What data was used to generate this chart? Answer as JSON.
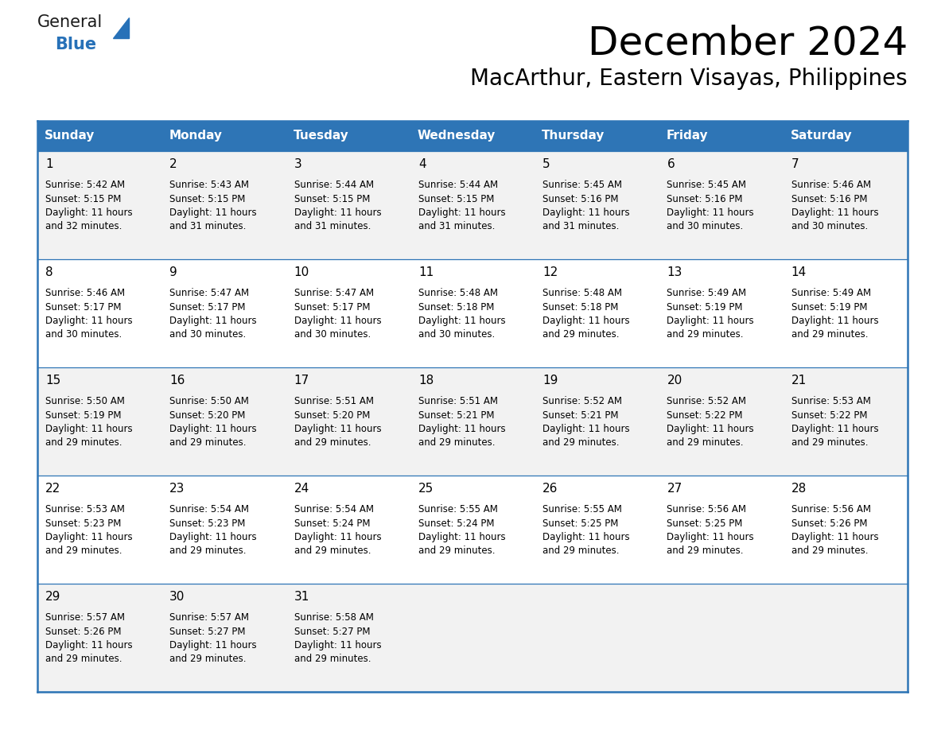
{
  "title": "December 2024",
  "subtitle": "MacArthur, Eastern Visayas, Philippines",
  "header_color": "#2E75B6",
  "header_text_color": "#FFFFFF",
  "day_names": [
    "Sunday",
    "Monday",
    "Tuesday",
    "Wednesday",
    "Thursday",
    "Friday",
    "Saturday"
  ],
  "row_bg_even": "#F2F2F2",
  "row_bg_odd": "#FFFFFF",
  "border_color": "#2E75B6",
  "text_color": "#000000",
  "date_fontsize": 11,
  "info_fontsize": 8.5,
  "header_fontsize": 11,
  "title_fontsize": 36,
  "subtitle_fontsize": 20,
  "logo_general_color": "#1a1a1a",
  "logo_blue_color": "#2771B8",
  "calendar": [
    [
      {
        "day": 1,
        "sunrise": "5:42 AM",
        "sunset": "5:15 PM",
        "daylight_h": "11 hours",
        "daylight_m": "and 32 minutes."
      },
      {
        "day": 2,
        "sunrise": "5:43 AM",
        "sunset": "5:15 PM",
        "daylight_h": "11 hours",
        "daylight_m": "and 31 minutes."
      },
      {
        "day": 3,
        "sunrise": "5:44 AM",
        "sunset": "5:15 PM",
        "daylight_h": "11 hours",
        "daylight_m": "and 31 minutes."
      },
      {
        "day": 4,
        "sunrise": "5:44 AM",
        "sunset": "5:15 PM",
        "daylight_h": "11 hours",
        "daylight_m": "and 31 minutes."
      },
      {
        "day": 5,
        "sunrise": "5:45 AM",
        "sunset": "5:16 PM",
        "daylight_h": "11 hours",
        "daylight_m": "and 31 minutes."
      },
      {
        "day": 6,
        "sunrise": "5:45 AM",
        "sunset": "5:16 PM",
        "daylight_h": "11 hours",
        "daylight_m": "and 30 minutes."
      },
      {
        "day": 7,
        "sunrise": "5:46 AM",
        "sunset": "5:16 PM",
        "daylight_h": "11 hours",
        "daylight_m": "and 30 minutes."
      }
    ],
    [
      {
        "day": 8,
        "sunrise": "5:46 AM",
        "sunset": "5:17 PM",
        "daylight_h": "11 hours",
        "daylight_m": "and 30 minutes."
      },
      {
        "day": 9,
        "sunrise": "5:47 AM",
        "sunset": "5:17 PM",
        "daylight_h": "11 hours",
        "daylight_m": "and 30 minutes."
      },
      {
        "day": 10,
        "sunrise": "5:47 AM",
        "sunset": "5:17 PM",
        "daylight_h": "11 hours",
        "daylight_m": "and 30 minutes."
      },
      {
        "day": 11,
        "sunrise": "5:48 AM",
        "sunset": "5:18 PM",
        "daylight_h": "11 hours",
        "daylight_m": "and 30 minutes."
      },
      {
        "day": 12,
        "sunrise": "5:48 AM",
        "sunset": "5:18 PM",
        "daylight_h": "11 hours",
        "daylight_m": "and 29 minutes."
      },
      {
        "day": 13,
        "sunrise": "5:49 AM",
        "sunset": "5:19 PM",
        "daylight_h": "11 hours",
        "daylight_m": "and 29 minutes."
      },
      {
        "day": 14,
        "sunrise": "5:49 AM",
        "sunset": "5:19 PM",
        "daylight_h": "11 hours",
        "daylight_m": "and 29 minutes."
      }
    ],
    [
      {
        "day": 15,
        "sunrise": "5:50 AM",
        "sunset": "5:19 PM",
        "daylight_h": "11 hours",
        "daylight_m": "and 29 minutes."
      },
      {
        "day": 16,
        "sunrise": "5:50 AM",
        "sunset": "5:20 PM",
        "daylight_h": "11 hours",
        "daylight_m": "and 29 minutes."
      },
      {
        "day": 17,
        "sunrise": "5:51 AM",
        "sunset": "5:20 PM",
        "daylight_h": "11 hours",
        "daylight_m": "and 29 minutes."
      },
      {
        "day": 18,
        "sunrise": "5:51 AM",
        "sunset": "5:21 PM",
        "daylight_h": "11 hours",
        "daylight_m": "and 29 minutes."
      },
      {
        "day": 19,
        "sunrise": "5:52 AM",
        "sunset": "5:21 PM",
        "daylight_h": "11 hours",
        "daylight_m": "and 29 minutes."
      },
      {
        "day": 20,
        "sunrise": "5:52 AM",
        "sunset": "5:22 PM",
        "daylight_h": "11 hours",
        "daylight_m": "and 29 minutes."
      },
      {
        "day": 21,
        "sunrise": "5:53 AM",
        "sunset": "5:22 PM",
        "daylight_h": "11 hours",
        "daylight_m": "and 29 minutes."
      }
    ],
    [
      {
        "day": 22,
        "sunrise": "5:53 AM",
        "sunset": "5:23 PM",
        "daylight_h": "11 hours",
        "daylight_m": "and 29 minutes."
      },
      {
        "day": 23,
        "sunrise": "5:54 AM",
        "sunset": "5:23 PM",
        "daylight_h": "11 hours",
        "daylight_m": "and 29 minutes."
      },
      {
        "day": 24,
        "sunrise": "5:54 AM",
        "sunset": "5:24 PM",
        "daylight_h": "11 hours",
        "daylight_m": "and 29 minutes."
      },
      {
        "day": 25,
        "sunrise": "5:55 AM",
        "sunset": "5:24 PM",
        "daylight_h": "11 hours",
        "daylight_m": "and 29 minutes."
      },
      {
        "day": 26,
        "sunrise": "5:55 AM",
        "sunset": "5:25 PM",
        "daylight_h": "11 hours",
        "daylight_m": "and 29 minutes."
      },
      {
        "day": 27,
        "sunrise": "5:56 AM",
        "sunset": "5:25 PM",
        "daylight_h": "11 hours",
        "daylight_m": "and 29 minutes."
      },
      {
        "day": 28,
        "sunrise": "5:56 AM",
        "sunset": "5:26 PM",
        "daylight_h": "11 hours",
        "daylight_m": "and 29 minutes."
      }
    ],
    [
      {
        "day": 29,
        "sunrise": "5:57 AM",
        "sunset": "5:26 PM",
        "daylight_h": "11 hours",
        "daylight_m": "and 29 minutes."
      },
      {
        "day": 30,
        "sunrise": "5:57 AM",
        "sunset": "5:27 PM",
        "daylight_h": "11 hours",
        "daylight_m": "and 29 minutes."
      },
      {
        "day": 31,
        "sunrise": "5:58 AM",
        "sunset": "5:27 PM",
        "daylight_h": "11 hours",
        "daylight_m": "and 29 minutes."
      },
      null,
      null,
      null,
      null
    ]
  ]
}
